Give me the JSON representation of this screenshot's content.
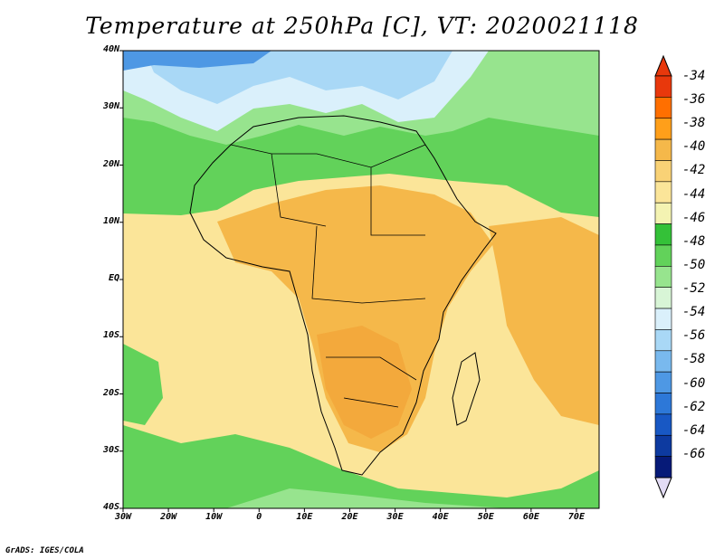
{
  "title": "Temperature at 250hPa [C], VT: 2020021118",
  "credit": "GrADS: IGES/COLA",
  "map": {
    "lat_ticks": [
      "40N",
      "30N",
      "20N",
      "10N",
      "EQ",
      "10S",
      "20S",
      "30S",
      "40S"
    ],
    "lon_ticks": [
      "30W",
      "20W",
      "10W",
      "0",
      "10E",
      "20E",
      "30E",
      "40E",
      "50E",
      "60E",
      "70E"
    ]
  },
  "colorbar": {
    "labels": [
      "-34",
      "-36",
      "-38",
      "-40",
      "-42",
      "-44",
      "-46",
      "-48",
      "-50",
      "-52",
      "-54",
      "-56",
      "-58",
      "-60",
      "-62",
      "-64",
      "-66"
    ],
    "colors": [
      "#e8380c",
      "#ff6f00",
      "#ff9f1a",
      "#f5b84a",
      "#f9d276",
      "#fbe599",
      "#f4f3b2",
      "#34c138",
      "#62d25a",
      "#97e48e",
      "#d8f5d6",
      "#daf0fb",
      "#a9d8f6",
      "#79b9ee",
      "#4e98e4",
      "#2d78d8",
      "#1858c4",
      "#0d3aa0",
      "#061a78"
    ],
    "top_color": "#e8380c",
    "bottom_color": "#e3dcf5"
  },
  "palette": {
    "ocean_warm": "#fbe599",
    "land_warm": "#f5b84a",
    "land_warmest": "#f3a93c",
    "cool_green": "#62d25a",
    "pale_green": "#97e48e",
    "pale_blue": "#daf0fb",
    "light_blue": "#a9d8f6",
    "blue": "#4e98e4"
  }
}
